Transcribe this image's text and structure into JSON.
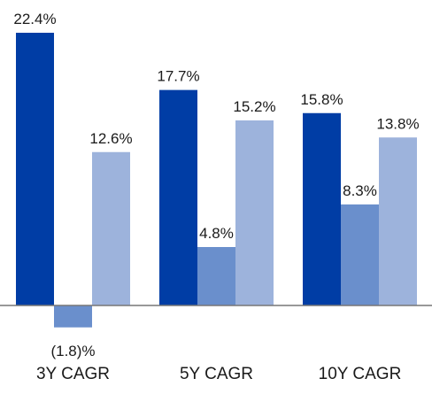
{
  "chart_data": {
    "type": "bar",
    "title": "",
    "xlabel": "",
    "ylabel": "",
    "categories": [
      "3Y CAGR",
      "5Y CAGR",
      "10Y CAGR"
    ],
    "series": [
      {
        "values": [
          22.4,
          17.7,
          15.8
        ],
        "color": "#003da5",
        "labels": [
          "22.4%",
          "17.7%",
          "15.8%"
        ]
      },
      {
        "values": [
          -1.8,
          4.8,
          8.3
        ],
        "color": "#6a8fcc",
        "labels": [
          "(1.8)%",
          "4.8%",
          "8.3%"
        ]
      },
      {
        "values": [
          12.6,
          15.2,
          13.8
        ],
        "color": "#9db3dc",
        "labels": [
          "12.6%",
          "15.2%",
          "13.8%"
        ]
      }
    ],
    "ylim": [
      -1.8,
      22.4
    ],
    "grid": false,
    "legend": "none",
    "axis_color": "#777777"
  }
}
